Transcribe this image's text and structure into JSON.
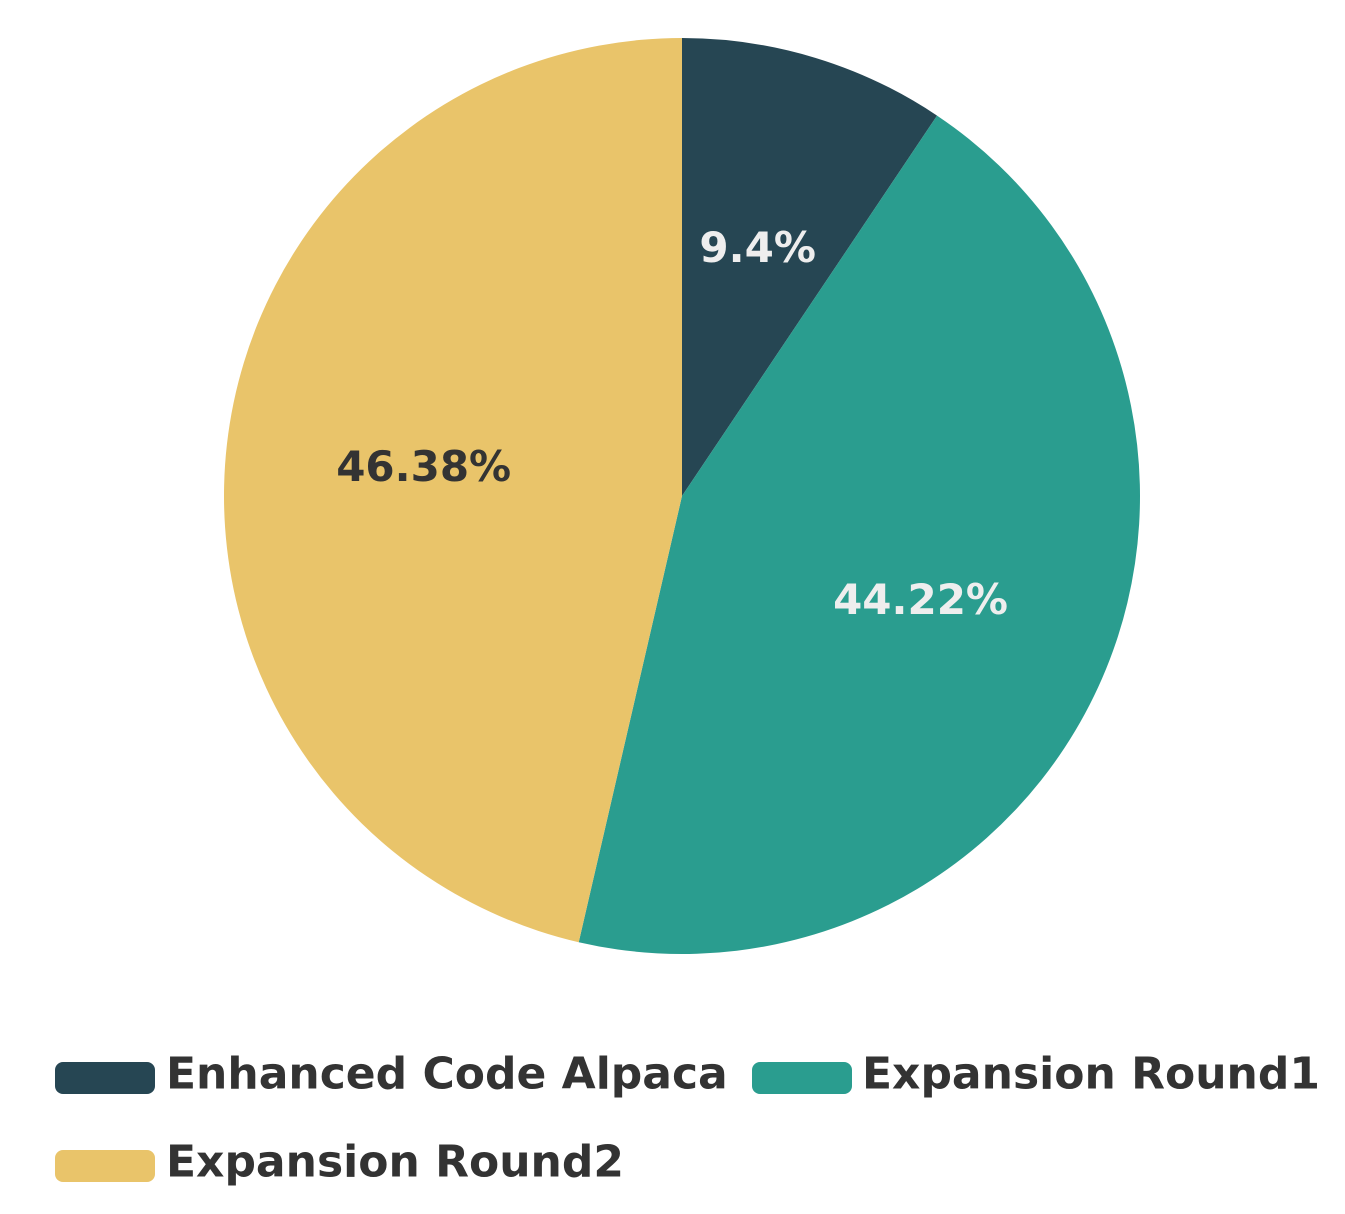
{
  "chart_data": {
    "type": "pie",
    "title": "",
    "categories": [
      "Enhanced Code Alpaca",
      "Expansion Round1",
      "Expansion Round2"
    ],
    "values": [
      9.4,
      44.22,
      46.38
    ],
    "labels": [
      "9.4%",
      "44.22%",
      "46.38%"
    ],
    "colors": [
      "#264653",
      "#2a9d8f",
      "#e9c46a"
    ],
    "label_colors": [
      "#eeeeee",
      "#eeeeee",
      "#333333"
    ],
    "legend": {
      "placement": "bottom",
      "entries": [
        "Enhanced Code Alpaca",
        "Expansion Round1",
        "Expansion Round2"
      ]
    }
  }
}
